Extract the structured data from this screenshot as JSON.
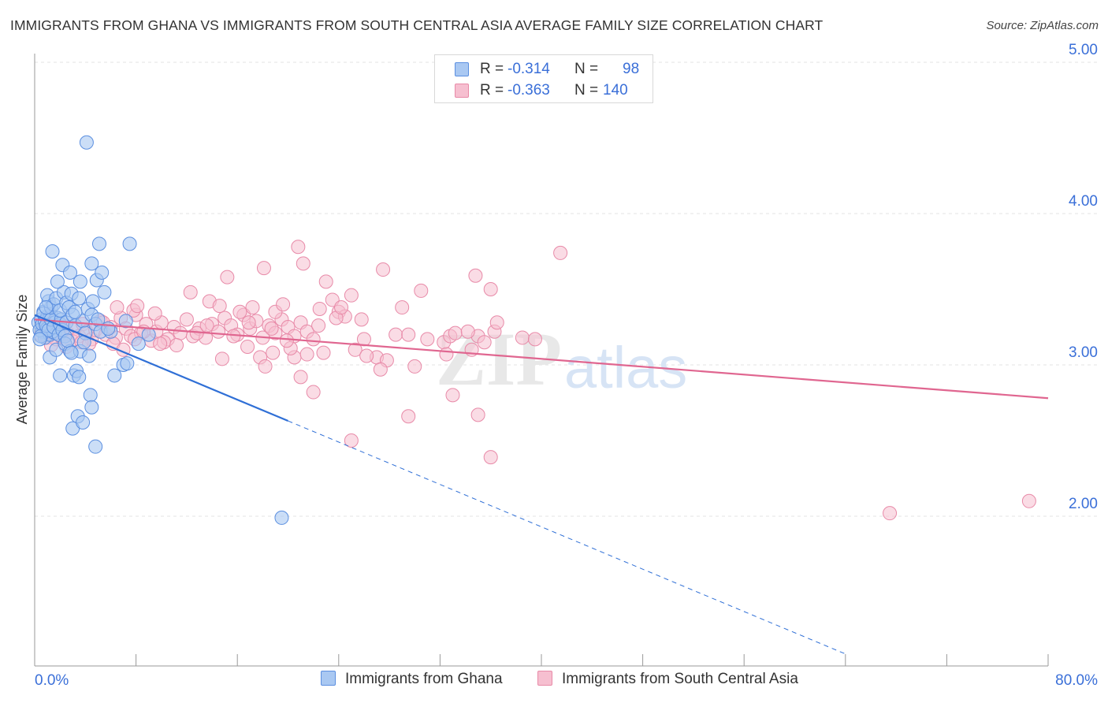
{
  "title": "IMMIGRANTS FROM GHANA VS IMMIGRANTS FROM SOUTH CENTRAL ASIA AVERAGE FAMILY SIZE CORRELATION CHART",
  "source": "Source: ZipAtlas.com",
  "watermark": {
    "zip": "ZIP",
    "atlas": "atlas"
  },
  "legend": {
    "r_label": "R =",
    "n_label": "N =",
    "ghana": {
      "r": "-0.314",
      "n": "98"
    },
    "sca": {
      "r": "-0.363",
      "n": "140"
    }
  },
  "colors": {
    "ghana_fill": "#a9c8f2",
    "ghana_stroke": "#5b8fe0",
    "ghana_line": "#2f6fd6",
    "sca_fill": "#f6bfd0",
    "sca_stroke": "#e88aa8",
    "sca_line": "#e06690",
    "axis_label_blue": "#3a6fd8",
    "grid": "#e3e3e3"
  },
  "chart_data": {
    "type": "scatter",
    "title": "IMMIGRANTS FROM GHANA VS IMMIGRANTS FROM SOUTH CENTRAL ASIA AVERAGE FAMILY SIZE CORRELATION CHART",
    "xlabel": "",
    "ylabel": "Average Family Size",
    "xlim": [
      0,
      80
    ],
    "ylim": [
      1.0,
      5.1
    ],
    "x_tick_labels": [
      "0.0%",
      "80.0%"
    ],
    "y_ticks": [
      2.0,
      3.0,
      4.0,
      5.0
    ],
    "y_tick_labels": [
      "2.00",
      "3.00",
      "4.00",
      "5.00"
    ],
    "grid": true,
    "legend_position": "top-center",
    "series": [
      {
        "name": "Immigrants from Ghana",
        "r": -0.314,
        "n": 98,
        "trend": {
          "x0": 0.0,
          "y0": 3.33,
          "x_solid_end": 20.0,
          "y_solid_end": 2.63,
          "x_dash_end": 64.0,
          "y_dash_end": 1.09
        },
        "points": [
          [
            0.3,
            3.28
          ],
          [
            0.5,
            3.3
          ],
          [
            0.6,
            3.22
          ],
          [
            0.7,
            3.35
          ],
          [
            0.8,
            3.18
          ],
          [
            0.9,
            3.25
          ],
          [
            1.0,
            3.32
          ],
          [
            1.1,
            3.27
          ],
          [
            1.2,
            3.2
          ],
          [
            1.3,
            3.33
          ],
          [
            1.4,
            3.24
          ],
          [
            1.5,
            3.29
          ],
          [
            1.6,
            3.21
          ],
          [
            1.7,
            3.26
          ],
          [
            1.8,
            3.31
          ],
          [
            0.4,
            3.23
          ],
          [
            0.6,
            3.27
          ],
          [
            0.8,
            3.29
          ],
          [
            1.0,
            3.24
          ],
          [
            1.2,
            3.31
          ],
          [
            1.4,
            3.22
          ],
          [
            1.6,
            3.28
          ],
          [
            0.5,
            3.19
          ],
          [
            0.7,
            3.34
          ],
          [
            0.9,
            3.26
          ],
          [
            1.1,
            3.23
          ],
          [
            1.3,
            3.3
          ],
          [
            1.5,
            3.25
          ],
          [
            1.9,
            3.2
          ],
          [
            2.0,
            3.27
          ],
          [
            2.1,
            3.3
          ],
          [
            2.2,
            3.23
          ],
          [
            2.4,
            3.19
          ],
          [
            2.5,
            3.28
          ],
          [
            1.3,
            3.38
          ],
          [
            1.1,
            3.42
          ],
          [
            1.0,
            3.46
          ],
          [
            1.5,
            3.4
          ],
          [
            1.7,
            3.44
          ],
          [
            2.0,
            3.36
          ],
          [
            2.3,
            3.48
          ],
          [
            2.5,
            3.41
          ],
          [
            2.7,
            3.38
          ],
          [
            2.9,
            3.47
          ],
          [
            3.0,
            3.33
          ],
          [
            3.2,
            3.26
          ],
          [
            3.5,
            3.44
          ],
          [
            3.8,
            3.29
          ],
          [
            4.0,
            3.21
          ],
          [
            4.2,
            3.37
          ],
          [
            4.5,
            3.33
          ],
          [
            4.8,
            3.27
          ],
          [
            5.0,
            3.3
          ],
          [
            5.2,
            3.22
          ],
          [
            5.5,
            3.48
          ],
          [
            1.8,
            3.55
          ],
          [
            3.6,
            3.55
          ],
          [
            4.9,
            3.56
          ],
          [
            5.3,
            3.61
          ],
          [
            1.4,
            3.75
          ],
          [
            2.2,
            3.66
          ],
          [
            2.8,
            3.61
          ],
          [
            4.5,
            3.67
          ],
          [
            5.1,
            3.8
          ],
          [
            7.5,
            3.8
          ],
          [
            4.1,
            4.47
          ],
          [
            1.2,
            3.05
          ],
          [
            1.7,
            3.1
          ],
          [
            2.0,
            2.93
          ],
          [
            2.4,
            3.14
          ],
          [
            2.8,
            3.09
          ],
          [
            3.1,
            2.93
          ],
          [
            3.3,
            2.96
          ],
          [
            3.6,
            3.09
          ],
          [
            3.9,
            3.15
          ],
          [
            4.3,
            3.06
          ],
          [
            3.5,
            2.92
          ],
          [
            4.4,
            2.8
          ],
          [
            4.5,
            2.72
          ],
          [
            3.4,
            2.66
          ],
          [
            3.0,
            2.58
          ],
          [
            3.8,
            2.62
          ],
          [
            4.8,
            2.46
          ],
          [
            6.3,
            2.93
          ],
          [
            7.0,
            3.0
          ],
          [
            7.3,
            3.01
          ],
          [
            8.2,
            3.14
          ],
          [
            6.0,
            3.22
          ],
          [
            7.2,
            3.29
          ],
          [
            9.0,
            3.2
          ],
          [
            19.5,
            1.99
          ],
          [
            0.4,
            3.17
          ],
          [
            0.9,
            3.38
          ],
          [
            2.6,
            3.16
          ],
          [
            3.2,
            3.35
          ],
          [
            4.6,
            3.42
          ],
          [
            5.8,
            3.24
          ],
          [
            2.9,
            3.08
          ]
        ]
      },
      {
        "name": "Immigrants from South Central Asia",
        "r": -0.363,
        "n": 140,
        "trend": {
          "x0": 0.0,
          "y0": 3.3,
          "x1": 80.0,
          "y1": 2.78
        },
        "points": [
          [
            0.5,
            3.2
          ],
          [
            0.8,
            3.25
          ],
          [
            1.0,
            3.18
          ],
          [
            1.2,
            3.22
          ],
          [
            1.5,
            3.28
          ],
          [
            1.7,
            3.17
          ],
          [
            1.9,
            3.23
          ],
          [
            2.1,
            3.19
          ],
          [
            2.3,
            3.26
          ],
          [
            2.6,
            3.21
          ],
          [
            2.9,
            3.16
          ],
          [
            3.2,
            3.24
          ],
          [
            3.5,
            3.19
          ],
          [
            3.8,
            3.27
          ],
          [
            4.1,
            3.22
          ],
          [
            4.5,
            3.17
          ],
          [
            4.8,
            3.23
          ],
          [
            5.2,
            3.29
          ],
          [
            5.6,
            3.2
          ],
          [
            6.0,
            3.25
          ],
          [
            6.4,
            3.18
          ],
          [
            6.8,
            3.31
          ],
          [
            7.2,
            3.24
          ],
          [
            7.6,
            3.19
          ],
          [
            8.0,
            3.33
          ],
          [
            8.4,
            3.21
          ],
          [
            8.8,
            3.27
          ],
          [
            9.2,
            3.16
          ],
          [
            9.6,
            3.22
          ],
          [
            10.0,
            3.28
          ],
          [
            10.5,
            3.17
          ],
          [
            11.0,
            3.25
          ],
          [
            11.5,
            3.21
          ],
          [
            12.0,
            3.3
          ],
          [
            12.5,
            3.19
          ],
          [
            13.0,
            3.24
          ],
          [
            13.5,
            3.18
          ],
          [
            14.0,
            3.27
          ],
          [
            14.5,
            3.22
          ],
          [
            15.0,
            3.31
          ],
          [
            15.5,
            3.26
          ],
          [
            16.0,
            3.2
          ],
          [
            16.5,
            3.33
          ],
          [
            17.0,
            3.24
          ],
          [
            17.5,
            3.29
          ],
          [
            18.0,
            3.18
          ],
          [
            18.5,
            3.26
          ],
          [
            19.0,
            3.21
          ],
          [
            19.5,
            3.3
          ],
          [
            20.0,
            3.25
          ],
          [
            20.5,
            3.19
          ],
          [
            21.0,
            3.28
          ],
          [
            21.5,
            3.22
          ],
          [
            22.0,
            3.17
          ],
          [
            6.5,
            3.38
          ],
          [
            7.8,
            3.36
          ],
          [
            8.1,
            3.39
          ],
          [
            9.5,
            3.34
          ],
          [
            10.2,
            3.15
          ],
          [
            12.3,
            3.48
          ],
          [
            13.8,
            3.42
          ],
          [
            14.6,
            3.39
          ],
          [
            15.2,
            3.58
          ],
          [
            16.2,
            3.35
          ],
          [
            17.2,
            3.38
          ],
          [
            18.1,
            3.64
          ],
          [
            19.0,
            3.35
          ],
          [
            19.6,
            3.4
          ],
          [
            20.8,
            3.78
          ],
          [
            21.2,
            3.67
          ],
          [
            22.5,
            3.37
          ],
          [
            23.0,
            3.55
          ],
          [
            23.5,
            3.43
          ],
          [
            24.0,
            3.35
          ],
          [
            24.5,
            3.32
          ],
          [
            25.0,
            3.46
          ],
          [
            27.5,
            3.63
          ],
          [
            29.0,
            3.38
          ],
          [
            30.5,
            3.49
          ],
          [
            34.8,
            3.59
          ],
          [
            35.0,
            3.19
          ],
          [
            36.0,
            3.5
          ],
          [
            41.5,
            3.74
          ],
          [
            23.8,
            3.31
          ],
          [
            26.0,
            3.17
          ],
          [
            27.0,
            3.05
          ],
          [
            27.8,
            3.03
          ],
          [
            28.5,
            3.2
          ],
          [
            29.5,
            3.2
          ],
          [
            31.0,
            3.17
          ],
          [
            32.3,
            3.15
          ],
          [
            32.8,
            3.19
          ],
          [
            33.2,
            3.21
          ],
          [
            34.2,
            3.22
          ],
          [
            35.5,
            3.15
          ],
          [
            36.3,
            3.22
          ],
          [
            36.5,
            3.28
          ],
          [
            38.5,
            3.18
          ],
          [
            39.5,
            3.17
          ],
          [
            17.8,
            3.05
          ],
          [
            18.8,
            3.08
          ],
          [
            20.5,
            3.05
          ],
          [
            20.2,
            3.11
          ],
          [
            21.5,
            3.07
          ],
          [
            22.8,
            3.08
          ],
          [
            25.3,
            3.1
          ],
          [
            26.2,
            3.06
          ],
          [
            27.3,
            2.97
          ],
          [
            32.5,
            3.07
          ],
          [
            34.5,
            3.1
          ],
          [
            30.0,
            2.99
          ],
          [
            16.8,
            3.12
          ],
          [
            14.8,
            3.04
          ],
          [
            18.2,
            2.99
          ],
          [
            21.0,
            2.92
          ],
          [
            22.0,
            2.82
          ],
          [
            33.0,
            2.8
          ],
          [
            29.5,
            2.66
          ],
          [
            35.0,
            2.67
          ],
          [
            25.0,
            2.5
          ],
          [
            36.0,
            2.39
          ],
          [
            67.5,
            2.02
          ],
          [
            78.5,
            2.1
          ],
          [
            1.3,
            3.13
          ],
          [
            2.5,
            3.12
          ],
          [
            3.7,
            3.15
          ],
          [
            4.3,
            3.14
          ],
          [
            5.4,
            3.28
          ],
          [
            6.2,
            3.14
          ],
          [
            7.0,
            3.1
          ],
          [
            7.9,
            3.17
          ],
          [
            8.6,
            3.22
          ],
          [
            9.9,
            3.14
          ],
          [
            11.2,
            3.13
          ],
          [
            12.8,
            3.21
          ],
          [
            13.6,
            3.26
          ],
          [
            15.7,
            3.19
          ],
          [
            16.9,
            3.28
          ],
          [
            18.7,
            3.24
          ],
          [
            19.9,
            3.16
          ],
          [
            22.4,
            3.26
          ],
          [
            24.2,
            3.38
          ],
          [
            25.8,
            3.3
          ]
        ]
      }
    ]
  }
}
